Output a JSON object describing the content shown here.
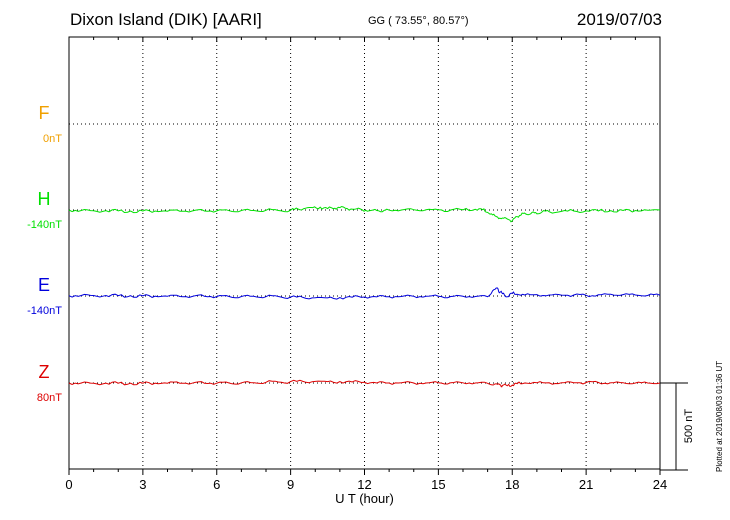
{
  "header": {
    "station": "Dixon Island (DIK)  [AARI]",
    "coords": "GG ( 73.55°,  80.57°)",
    "date": "2019/07/03"
  },
  "footer_note": "Plotted at 2019/08/03 01:36 UT",
  "chart_data": {
    "type": "line",
    "xlabel": "U T (hour)",
    "xlim": [
      0,
      24
    ],
    "xticks": [
      0,
      3,
      6,
      9,
      12,
      15,
      18,
      21,
      24
    ],
    "scale_bar": {
      "label": "500 nT",
      "value_nT": 500
    },
    "series": [
      {
        "name": "F",
        "baseline": "0nT",
        "color": "#f0a000",
        "values": []
      },
      {
        "name": "H",
        "baseline": "-140nT",
        "color": "#00e000",
        "x": [
          0,
          0.5,
          1,
          1.5,
          2,
          2.5,
          3,
          3.5,
          4,
          4.5,
          5,
          5.5,
          6,
          6.5,
          7,
          7.5,
          8,
          8.5,
          9,
          9.3,
          9.6,
          9.9,
          10.2,
          10.5,
          10.8,
          11,
          11.3,
          11.6,
          11.9,
          12.2,
          12.5,
          12.8,
          13,
          13.5,
          14,
          14.5,
          15,
          15.5,
          16,
          16.5,
          16.8,
          17,
          17.2,
          17.4,
          17.6,
          17.8,
          18,
          18.2,
          18.4,
          18.6,
          18.8,
          19,
          19.2,
          19.5,
          20,
          20.5,
          21,
          21.5,
          22,
          22.5,
          23,
          23.5,
          24
        ],
        "values": [
          0,
          -3,
          -4,
          -4,
          -5,
          -6,
          -6,
          -6,
          -7,
          -7,
          -6,
          -6,
          -5,
          -4,
          -3,
          -3,
          -2,
          -3,
          -1,
          6,
          10,
          14,
          16,
          8,
          10,
          14,
          8,
          4,
          2,
          -4,
          -3,
          -2,
          -1,
          0,
          2,
          2,
          1,
          0,
          1,
          4,
          2,
          -14,
          -28,
          -40,
          -46,
          -52,
          -62,
          -38,
          -18,
          -26,
          -14,
          -22,
          -12,
          -10,
          -8,
          -6,
          -5,
          -5,
          -4,
          -3,
          -3,
          -1,
          0
        ]
      },
      {
        "name": "E",
        "baseline": "-140nT",
        "color": "#0000dd",
        "x": [
          0,
          0.5,
          1,
          1.5,
          2,
          2.5,
          3,
          3.5,
          4,
          4.5,
          5,
          5.5,
          6,
          6.5,
          7,
          7.5,
          8,
          8.5,
          9,
          9.5,
          10,
          10.5,
          11,
          11.5,
          12,
          12.5,
          13,
          13.5,
          14,
          14.5,
          15,
          15.5,
          16,
          16.5,
          17,
          17.2,
          17.4,
          17.5,
          17.6,
          17.8,
          18,
          18.2,
          18.5,
          19,
          19.5,
          20,
          20.5,
          21,
          21.5,
          22,
          22.5,
          23,
          23.5,
          24
        ],
        "values": [
          2,
          3,
          3,
          3,
          2,
          2,
          1,
          -1,
          -2,
          -3,
          -3,
          -2,
          -3,
          -3,
          -3,
          -2,
          -4,
          -3,
          -6,
          -8,
          -10,
          -11,
          -9,
          -7,
          -6,
          -5,
          -4,
          -3,
          -2,
          -2,
          -1,
          -3,
          -2,
          -3,
          -4,
          30,
          46,
          22,
          14,
          -4,
          16,
          10,
          6,
          8,
          6,
          5,
          6,
          4,
          7,
          10,
          8,
          6,
          3,
          4
        ]
      },
      {
        "name": "Z",
        "baseline": "80nT",
        "color": "#dd0000",
        "x": [
          0,
          0.5,
          1,
          1.5,
          2,
          2.5,
          3,
          3.5,
          4,
          4.5,
          5,
          5.5,
          6,
          6.5,
          7,
          7.5,
          8,
          8.5,
          9,
          9.5,
          10,
          10.5,
          11,
          11.5,
          12,
          12.5,
          13,
          13.5,
          14,
          14.5,
          15,
          15.5,
          16,
          16.5,
          17,
          17.3,
          17.5,
          17.6,
          17.8,
          18,
          18.2,
          18.5,
          19,
          19.5,
          20,
          20.5,
          21,
          21.5,
          22,
          22.5,
          23,
          23.5,
          24
        ],
        "values": [
          0,
          0,
          -1,
          -1,
          -1,
          -1,
          -1,
          -1,
          -1,
          -1,
          -1,
          -1,
          -1,
          0,
          1,
          2,
          4,
          6,
          8,
          9,
          9,
          8,
          8,
          6,
          4,
          0,
          0,
          1,
          0,
          0,
          1,
          2,
          1,
          0,
          -2,
          -6,
          -10,
          -14,
          -16,
          -12,
          -4,
          0,
          1,
          1,
          2,
          2,
          3,
          3,
          2,
          2,
          0,
          0,
          0
        ]
      }
    ]
  }
}
